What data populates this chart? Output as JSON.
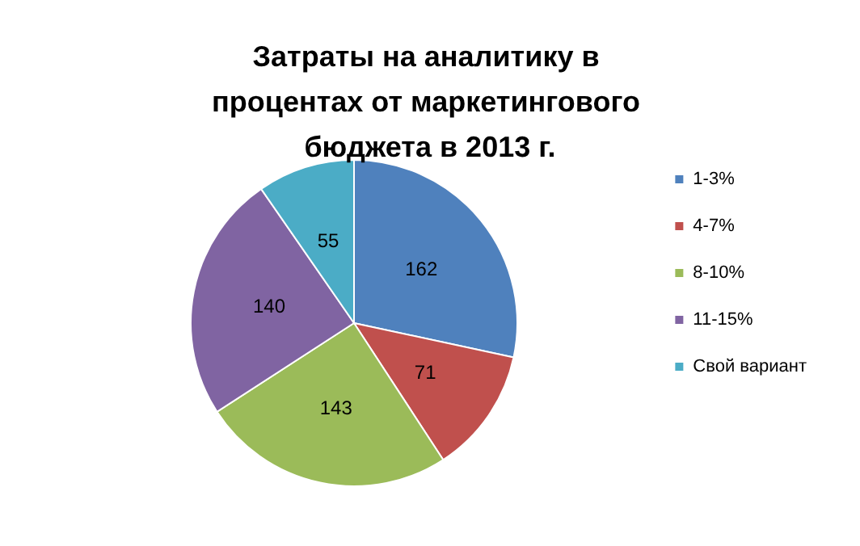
{
  "chart_data": {
    "type": "pie",
    "title": "Затраты на аналитику в процентах от маркетингового бюджета в 2013 г.",
    "categories": [
      "1-3%",
      "4-7%",
      "8-10%",
      "11-15%",
      "Свой вариант"
    ],
    "values": [
      162,
      71,
      143,
      140,
      55
    ],
    "colors": [
      "#4f81bd",
      "#c0504d",
      "#9bbb59",
      "#8064a2",
      "#4bacc6"
    ],
    "data_labels": true,
    "legend": "right"
  }
}
